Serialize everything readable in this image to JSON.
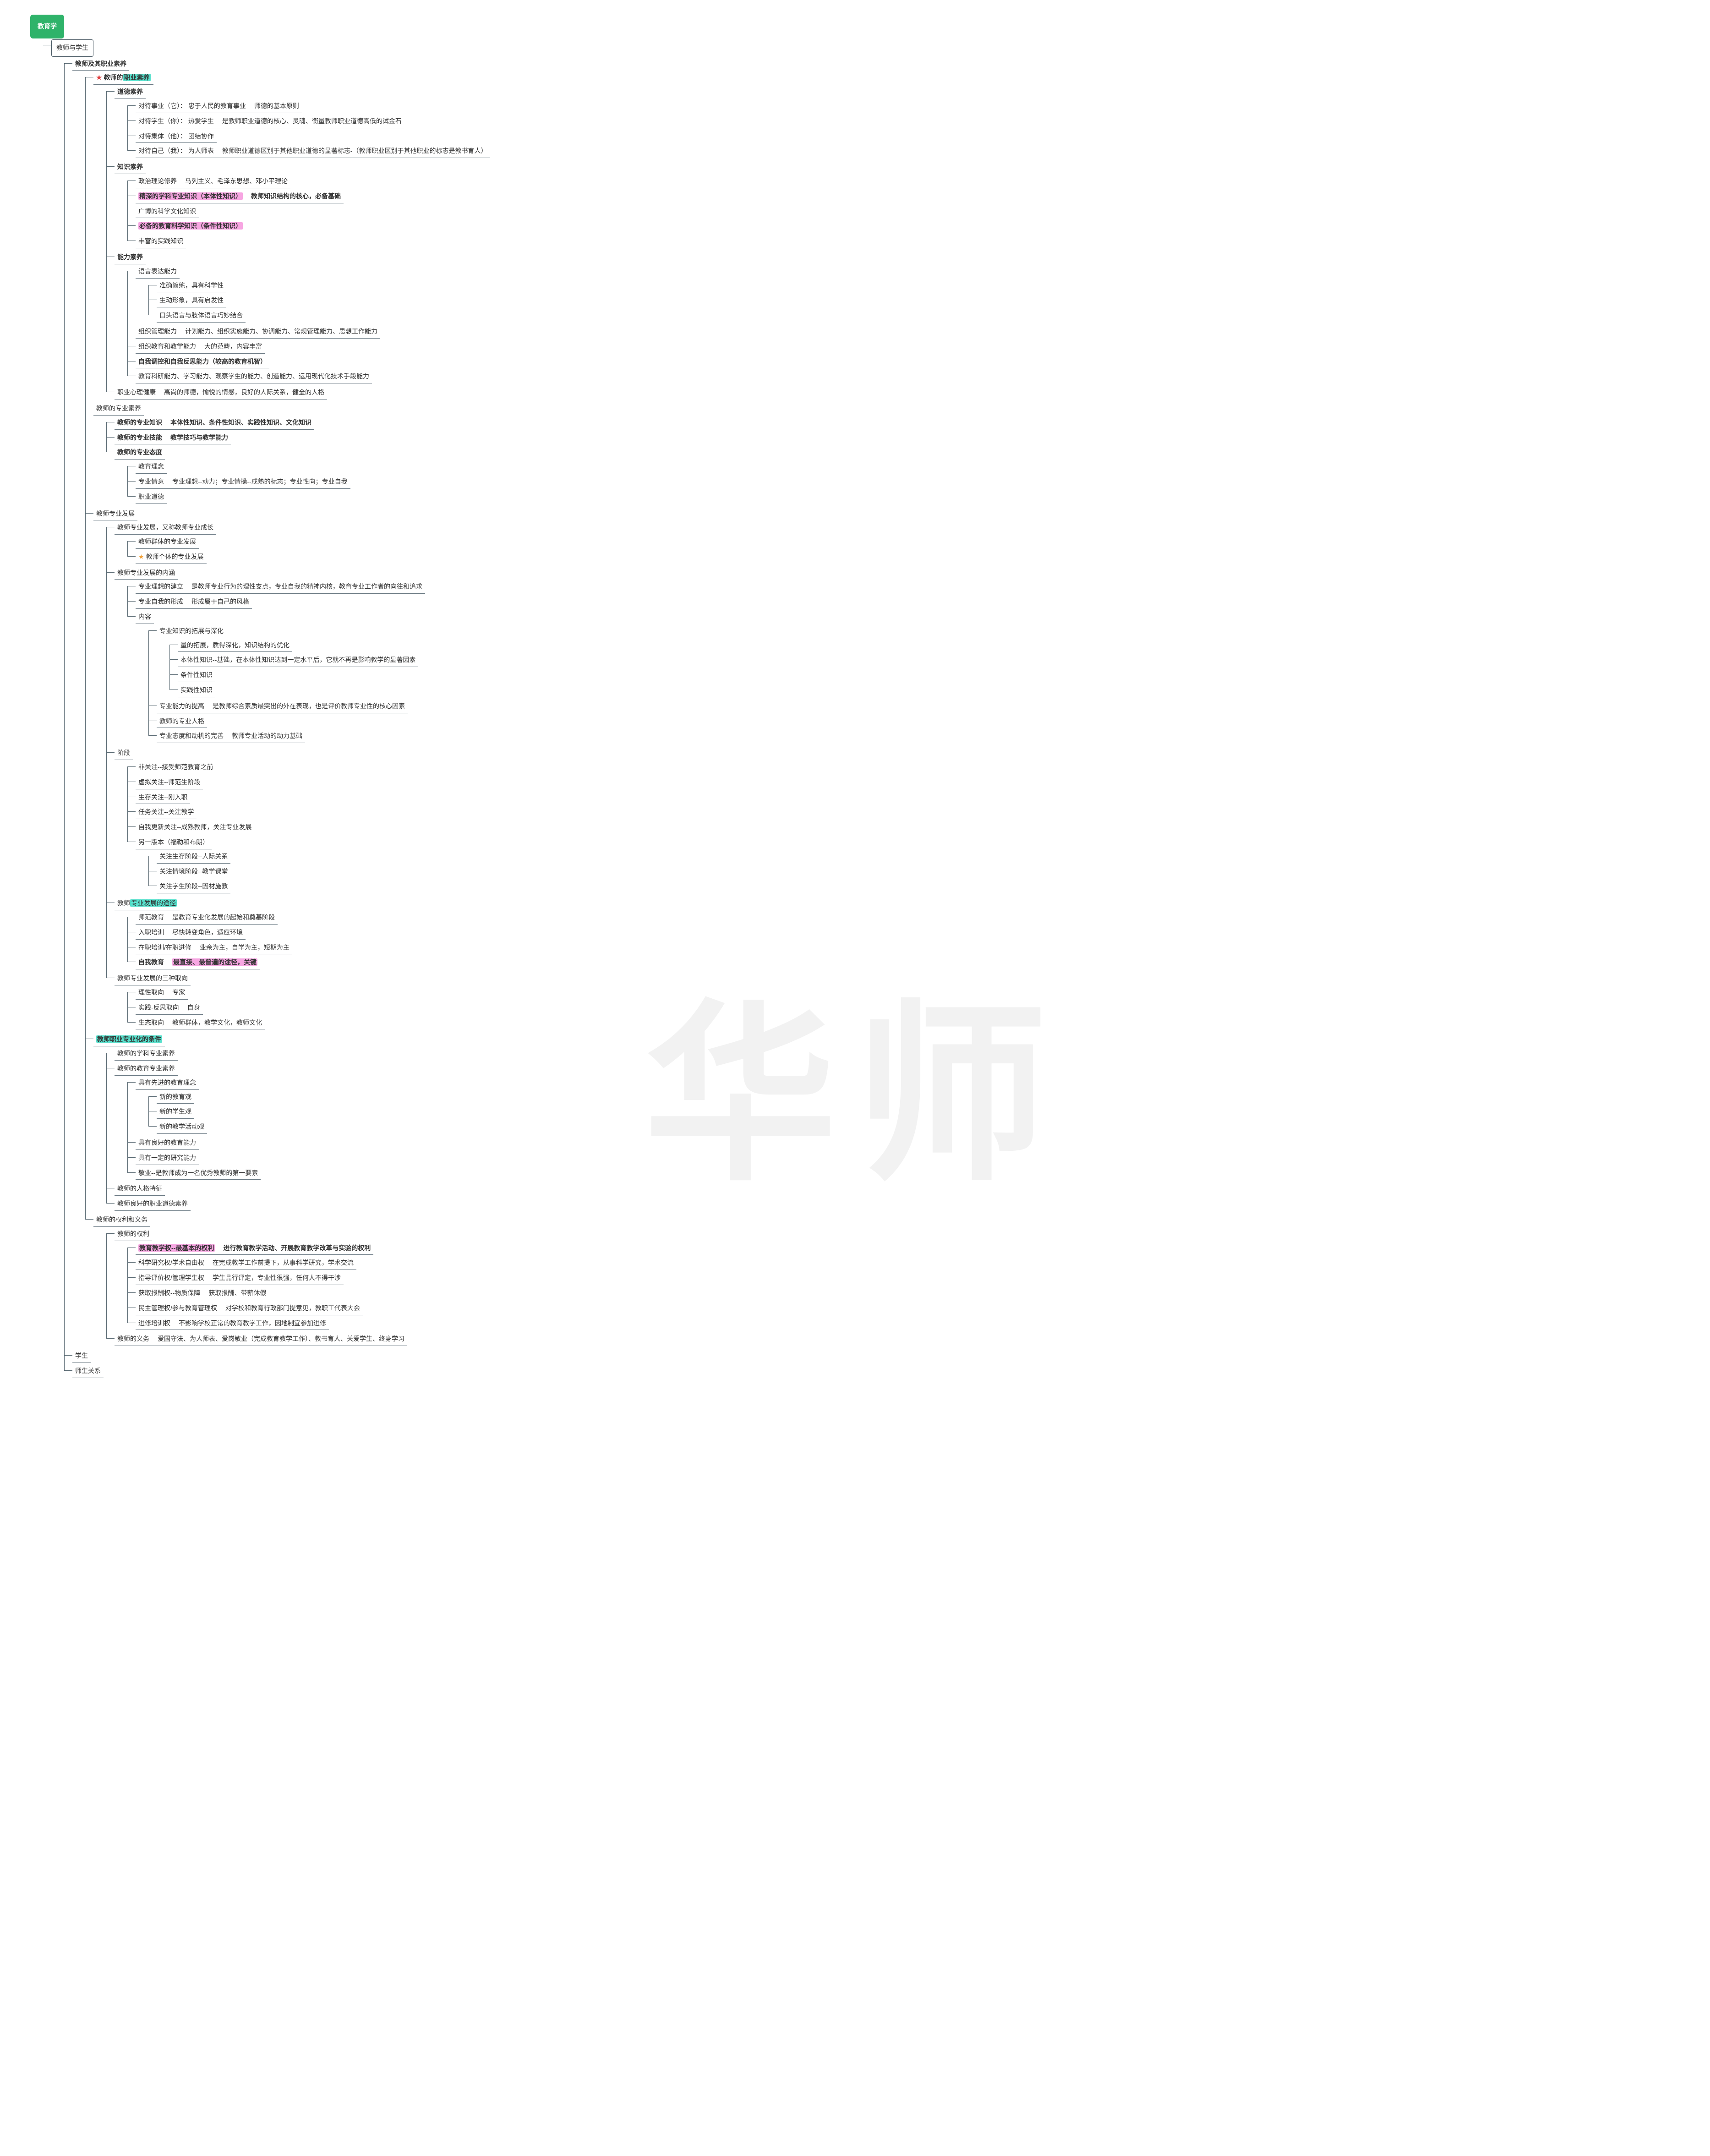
{
  "watermark": "华师",
  "colors": {
    "connector": "#5b6b74",
    "root_bg": "#2fb36a",
    "teal": "#58e0cc",
    "pink": "#f7a6e2",
    "star_red": "#e04040",
    "star_orange": "#f2a23a"
  },
  "tree": [
    {
      "t": "教育学",
      "cls": "rootbox",
      "children": [
        {
          "t": "教师与学生",
          "cls": "box",
          "children": [
            {
              "t": "教师及其职业素养",
              "bold": true,
              "children": [
                {
                  "t": "教师的",
                  "star": "red",
                  "hl": {
                    "text": "职业素养",
                    "cls": "teal"
                  },
                  "bold": true,
                  "children": [
                    {
                      "t": "道德素养",
                      "bold": true,
                      "children": [
                        {
                          "t": "对待事业（它）： 忠于人民的教育事业",
                          "desc": "师德的基本原则"
                        },
                        {
                          "t": "对待学生（你）： 热爱学生",
                          "desc": "是教师职业道德的核心、灵魂、衡量教师职业道德高低的试金石"
                        },
                        {
                          "t": "对待集体（他）： 团结协作"
                        },
                        {
                          "t": "对待自己（我）： 为人师表",
                          "desc": "教师职业道德区别于其他职业道德的显著标志-（教师职业区别于其他职业的标志是教书育人）"
                        }
                      ]
                    },
                    {
                      "t": "知识素养",
                      "bold": true,
                      "children": [
                        {
                          "t": "政治理论修养",
                          "desc": "马列主义、毛泽东思想、邓小平理论"
                        },
                        {
                          "t_hl": "精深的学科专业知识（本体性知识）",
                          "hlcls": "pink",
                          "bold": true,
                          "desc": "教师知识结构的核心，必备基础"
                        },
                        {
                          "t": "广博的科学文化知识"
                        },
                        {
                          "t_hl": "必备的教育科学知识（条件性知识）",
                          "hlcls": "pink",
                          "bold": true
                        },
                        {
                          "t": "丰富的实践知识"
                        }
                      ]
                    },
                    {
                      "t": "能力素养",
                      "bold": true,
                      "children": [
                        {
                          "t": "语言表达能力",
                          "children": [
                            {
                              "t": "准确简练，具有科学性"
                            },
                            {
                              "t": "生动形象，具有启发性"
                            },
                            {
                              "t": "口头语言与肢体语言巧妙结合"
                            }
                          ]
                        },
                        {
                          "t": "组织管理能力",
                          "desc": "计划能力、组织实施能力、协调能力、常规管理能力、思想工作能力"
                        },
                        {
                          "t": "组织教育和教学能力",
                          "desc": "大的范畴，内容丰富"
                        },
                        {
                          "t": "自我调控和自我反思能力（较高的教育机智）",
                          "bold": true
                        },
                        {
                          "t": "教育科研能力、学习能力、观察学生的能力、创造能力、运用现代化技术手段能力"
                        }
                      ]
                    },
                    {
                      "t": "职业心理健康",
                      "desc": "高尚的师德，愉悦的情感，良好的人际关系，健全的人格"
                    }
                  ]
                },
                {
                  "t": "教师的专业素养",
                  "children": [
                    {
                      "t": "教师的专业知识",
                      "bold": true,
                      "desc": "本体性知识、条件性知识、实践性知识、文化知识"
                    },
                    {
                      "t": "教师的专业技能",
                      "bold": true,
                      "desc": "教学技巧与教学能力"
                    },
                    {
                      "t": "教师的专业态度",
                      "bold": true,
                      "children": [
                        {
                          "t": "教育理念"
                        },
                        {
                          "t": "专业情意",
                          "desc": "专业理想--动力；专业情操--成熟的标志；专业性向；专业自我"
                        },
                        {
                          "t": "职业道德"
                        }
                      ]
                    }
                  ]
                },
                {
                  "t": "教师专业发展",
                  "children": [
                    {
                      "t": "教师专业发展，又称教师专业成长",
                      "children": [
                        {
                          "t": "教师群体的专业发展"
                        },
                        {
                          "t": "教师个体的专业发展",
                          "star": "orange"
                        }
                      ]
                    },
                    {
                      "t": "教师专业发展的内涵",
                      "children": [
                        {
                          "t": "专业理想的建立",
                          "desc": "是教师专业行为的理性支点，专业自我的精神内核，教育专业工作者的向往和追求"
                        },
                        {
                          "t": "专业自我的形成",
                          "desc": "形成属于自己的风格"
                        },
                        {
                          "t": "内容",
                          "children": [
                            {
                              "t": "专业知识的拓展与深化",
                              "children": [
                                {
                                  "t": "量的拓展，质得深化，知识结构的优化"
                                },
                                {
                                  "t": "本体性知识--基础，在本体性知识达到一定水平后，它就不再是影响教学的显著因素"
                                },
                                {
                                  "t": "条件性知识"
                                },
                                {
                                  "t": "实践性知识"
                                }
                              ]
                            },
                            {
                              "t": "专业能力的提高",
                              "desc": "是教师综合素质最突出的外在表现，也是评价教师专业性的核心因素"
                            },
                            {
                              "t": "教师的专业人格"
                            },
                            {
                              "t": "专业态度和动机的完善",
                              "desc": "教师专业活动的动力基础"
                            }
                          ]
                        }
                      ]
                    },
                    {
                      "t": "阶段",
                      "children": [
                        {
                          "t": "非关注--接受师范教育之前"
                        },
                        {
                          "t": "虚拟关注--师范生阶段"
                        },
                        {
                          "t": "生存关注--刚入职"
                        },
                        {
                          "t": "任务关注--关注教学"
                        },
                        {
                          "t": "自我更新关注--成熟教师，关注专业发展"
                        },
                        {
                          "t": "另一版本（福勒和布朗）",
                          "children": [
                            {
                              "t": "关注生存阶段--人际关系"
                            },
                            {
                              "t": "关注情境阶段--教学课堂"
                            },
                            {
                              "t": "关注学生阶段--因材施教"
                            }
                          ]
                        }
                      ]
                    },
                    {
                      "t": "教师",
                      "hl": {
                        "text": "专业发展的途径",
                        "cls": "teal"
                      },
                      "children": [
                        {
                          "t": "师范教育",
                          "desc": "是教育专业化发展的起始和奠基阶段"
                        },
                        {
                          "t": "入职培训",
                          "desc": "尽快转变角色，适应环境"
                        },
                        {
                          "t": "在职培训/在职进修",
                          "desc": "业余为主，自学为主，短期为主"
                        },
                        {
                          "t": "自我教育",
                          "desc_hl": "最直接、最普遍的途径，关键",
                          "hlcls": "pink",
                          "bold": true
                        }
                      ]
                    },
                    {
                      "t": "教师专业发展的三种取向",
                      "children": [
                        {
                          "t": "理性取向",
                          "desc": "专家"
                        },
                        {
                          "t": "实践-反思取向",
                          "desc": "自身"
                        },
                        {
                          "t": "生态取向",
                          "desc": "教师群体，教学文化，教师文化"
                        }
                      ]
                    }
                  ]
                },
                {
                  "t_hl": "教师职业专业化的条件",
                  "hlcls": "teal",
                  "bold": true,
                  "children": [
                    {
                      "t": "教师的学科专业素养"
                    },
                    {
                      "t": "教师的教育专业素养",
                      "children": [
                        {
                          "t": "具有先进的教育理念",
                          "children": [
                            {
                              "t": "新的教育观"
                            },
                            {
                              "t": "新的学生观"
                            },
                            {
                              "t": "新的教学活动观"
                            }
                          ]
                        },
                        {
                          "t": "具有良好的教育能力"
                        },
                        {
                          "t": "具有一定的研究能力"
                        },
                        {
                          "t": "敬业--是教师成为一名优秀教师的第一要素"
                        }
                      ]
                    },
                    {
                      "t": "教师的人格特征"
                    },
                    {
                      "t": "教师良好的职业道德素养"
                    }
                  ]
                },
                {
                  "t": "教师的权利和义务",
                  "children": [
                    {
                      "t": "教师的权利",
                      "children": [
                        {
                          "t_hl": "教育教学权--最基本的权利",
                          "hlcls": "pink",
                          "bold": true,
                          "desc": "进行教育教学活动、开展教育教学改革与实验的权利"
                        },
                        {
                          "t": "科学研究权/学术自由权",
                          "desc": "在完成教学工作前提下，从事科学研究，学术交流"
                        },
                        {
                          "t": "指导评价权/管理学生权",
                          "desc": "学生品行评定，专业性很强，任何人不得干涉"
                        },
                        {
                          "t": "获取报酬权--物质保障",
                          "desc": "获取报酬、带薪休假"
                        },
                        {
                          "t": "民主管理权/参与教育管理权",
                          "desc": "对学校和教育行政部门提意见，教职工代表大会"
                        },
                        {
                          "t": "进修培训权",
                          "desc": "不影响学校正常的教育教学工作，因地制宜参加进修"
                        }
                      ]
                    },
                    {
                      "t": "教师的义务",
                      "desc": "爱国守法、为人师表、爱岗敬业（完成教育教学工作）、教书育人、关爱学生、终身学习"
                    }
                  ]
                }
              ]
            },
            {
              "t": "学生"
            },
            {
              "t": "师生关系"
            }
          ]
        }
      ]
    }
  ]
}
